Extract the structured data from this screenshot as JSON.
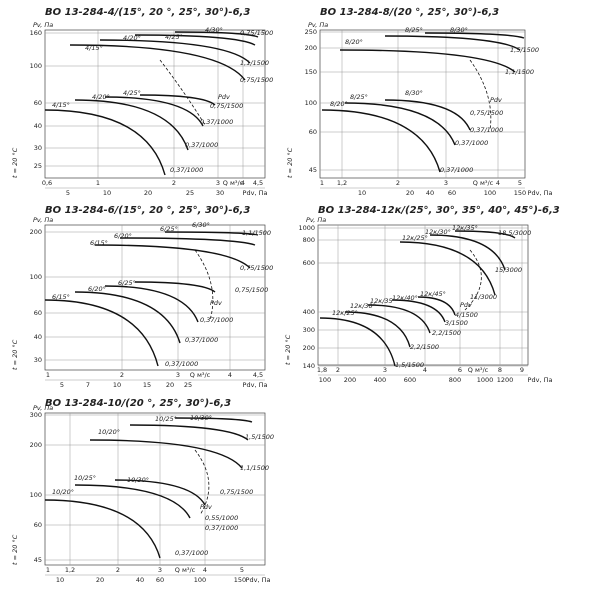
{
  "panels": [
    {
      "title": "ВО 13-284-4/(15°, 20 °, 25°, 30°)-6,3",
      "y_unit": "Pv, Па",
      "temp": "t = 20 °C",
      "y_ticks": [
        "160",
        "100",
        "60",
        "40",
        "30",
        "25"
      ],
      "x_ticks": [
        "0,6",
        "1",
        "2",
        "3",
        "Q м³/с",
        "4",
        "4,5"
      ],
      "x_ticks_2": [
        "5",
        "10",
        "20",
        "25",
        "30",
        "Pdv, Па"
      ],
      "curve_labels": [
        "4/20°",
        "4/25°",
        "4/30°",
        "0,75/1500",
        "4/15°",
        "1,1/1500",
        "0,75/1500",
        "4/20°",
        "4/25°",
        "Pdv",
        "0,75/1500",
        "4/15°",
        "0,37/1000",
        "0,37/1000",
        "0,37/1000"
      ]
    },
    {
      "title": "ВО 13-284-8/(20 °, 25°, 30°)-6,3",
      "y_unit": "Pv, Па",
      "temp": "t = 20 °C",
      "y_ticks": [
        "250",
        "200",
        "150",
        "100",
        "60",
        "45"
      ],
      "x_ticks": [
        "1",
        "1,2",
        "2",
        "3",
        "Q м³/с",
        "4",
        "5"
      ],
      "x_ticks_2": [
        "10",
        "20",
        "40",
        "60",
        "100",
        "150",
        "Pdv, Па"
      ],
      "curve_labels": [
        "8/25°",
        "8/30°",
        "8/20°",
        "1,5/1500",
        "1,1/1500",
        "8/25°",
        "8/30°",
        "8/20°",
        "Pdv",
        "0,75/1500",
        "0,37/1000",
        "0,37/1000",
        "0,37/1000"
      ]
    },
    {
      "title": "ВО 13-284-6/(15°, 20 °, 25°, 30°)-6,3",
      "y_unit": "Pv, Па",
      "temp": "t = 20 °C",
      "y_ticks": [
        "200",
        "100",
        "60",
        "40",
        "30"
      ],
      "x_ticks": [
        "1",
        "2",
        "3",
        "Q м³/с",
        "4",
        "4,5"
      ],
      "x_ticks_2": [
        "5",
        "7",
        "10",
        "15",
        "20",
        "25",
        "Pdv, Па"
      ],
      "curve_labels": [
        "6/25°",
        "6/30°",
        "1,1/1500",
        "6/20°",
        "6/15°",
        "0,75/1500",
        "0,75/1500",
        "6/25°",
        "6/20°",
        "Pdv",
        "6/15°",
        "0,37/1000",
        "0,37/1000",
        "0,37/1000"
      ]
    },
    {
      "title": "ВО 13-284-12к/(25°, 30°, 35°, 40°, 45°)-6,3",
      "y_unit": "Pv, Па",
      "temp": "t = 20 °C",
      "y_ticks": [
        "1000",
        "800",
        "600",
        "400",
        "300",
        "200",
        "140"
      ],
      "x_ticks": [
        "1,8",
        "2",
        "3",
        "4",
        "6",
        "Q м³/с",
        "8",
        "9"
      ],
      "x_ticks_2": [
        "100",
        "200",
        "400",
        "600",
        "800",
        "1000",
        "1200",
        "Pdv, Па"
      ],
      "curve_labels": [
        "12к/35°",
        "12к/30°",
        "12к/25°",
        "18,5/3000",
        "15/3000",
        "11/3000",
        "12к/45°",
        "12к/40°",
        "12к/35°",
        "12к/30°",
        "12к/25°",
        "Pdv",
        "4/1500",
        "3/1500",
        "2,2/1500",
        "2,2/1500",
        "1,5/1500"
      ]
    },
    {
      "title": "ВО 13-284-10/(20 °, 25°, 30°)-6,3",
      "y_unit": "Pv, Па",
      "temp": "t = 20 °C",
      "y_ticks": [
        "300",
        "200",
        "100",
        "60",
        "45"
      ],
      "x_ticks": [
        "1",
        "1,2",
        "2",
        "3",
        "Q м³/с",
        "4",
        "5"
      ],
      "x_ticks_2": [
        "10",
        "20",
        "40",
        "60",
        "100",
        "150",
        "Pdv, Па"
      ],
      "curve_labels": [
        "10/25°",
        "10/30°",
        "10/20°",
        "1,5/1500",
        "1,1/1500",
        "10/25°",
        "10/30°",
        "10/20°",
        "0,75/1500",
        "Pdv",
        "0,55/1000",
        "0,37/1000",
        "0,37/1000"
      ]
    }
  ]
}
